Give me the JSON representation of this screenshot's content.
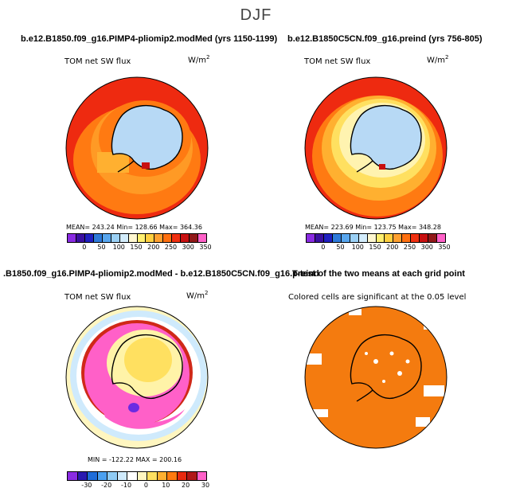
{
  "figure_title": "DJF",
  "colors": {
    "scale_abs": [
      "#8a2be2",
      "#3a0fa0",
      "#2020c0",
      "#2e7ad9",
      "#58a6ee",
      "#9bd0f5",
      "#d3ecfb",
      "#fff7d0",
      "#ffef70",
      "#ffcf40",
      "#ffa030",
      "#ff7010",
      "#f03010",
      "#c81010",
      "#901818",
      "#ff60c8"
    ],
    "scale_diff": [
      "#8a2be2",
      "#2a1ab0",
      "#1e6cd8",
      "#4ba0f0",
      "#8fcbf5",
      "#cfeafc",
      "#ffffff",
      "#fff6c0",
      "#ffe060",
      "#ffb030",
      "#ff7a10",
      "#e82a10",
      "#b01818",
      "#ff60c8"
    ],
    "land": "#b7d9f5",
    "significant": "#f47b0f"
  },
  "panels": [
    {
      "title": "b.e12.B1850.f09_g16.PIMP4-pliomip2.modMed (yrs 1150-1199)",
      "variable": "TOM net SW flux",
      "units": "W/m",
      "units_sup": "2",
      "stats": "MEAN= 243.24   Min= 128.66   Max= 364.36",
      "cbar_labels": [
        "0",
        "50",
        "100",
        "150",
        "200",
        "250",
        "300",
        "350"
      ]
    },
    {
      "title": "b.e12.B1850C5CN.f09_g16.preind (yrs 756-805)",
      "variable": "TOM net SW flux",
      "units": "W/m",
      "units_sup": "2",
      "stats": "MEAN= 223.69   Min= 123.75   Max= 348.28",
      "cbar_labels": [
        "0",
        "50",
        "100",
        "150",
        "200",
        "250",
        "300",
        "350"
      ]
    },
    {
      "title": ".B1850.f09_g16.PIMP4-pliomip2.modMed - b.e12.B1850C5CN.f09_g16.preind",
      "variable": "TOM net SW flux",
      "units": "W/m",
      "units_sup": "2",
      "stats": "MIN = -122.22  MAX = 200.16",
      "cbar_labels": [
        "-30",
        "-20",
        "-10",
        "0",
        "10",
        "20",
        "30"
      ]
    },
    {
      "title": "T-test of the two means at each grid point",
      "subtitle": "Colored cells are significant at the 0.05 level"
    }
  ],
  "chart_data": [
    {
      "type": "heatmap",
      "projection": "south polar stereographic",
      "title": "b.e12.B1850.f09_g16.PIMP4-pliomip2.modMed (yrs 1150-1199)",
      "variable": "TOM net SW flux",
      "units": "W/m2",
      "mean": 243.24,
      "min": 128.66,
      "max": 364.36,
      "colorbar_ticks": [
        0,
        50,
        100,
        150,
        200,
        250,
        300,
        350
      ]
    },
    {
      "type": "heatmap",
      "projection": "south polar stereographic",
      "title": "b.e12.B1850C5CN.f09_g16.preind (yrs 756-805)",
      "variable": "TOM net SW flux",
      "units": "W/m2",
      "mean": 223.69,
      "min": 123.75,
      "max": 348.28,
      "colorbar_ticks": [
        0,
        50,
        100,
        150,
        200,
        250,
        300,
        350
      ]
    },
    {
      "type": "heatmap",
      "projection": "south polar stereographic",
      "title": ".B1850.f09_g16.PIMP4-pliomip2.modMed - b.e12.B1850C5CN.f09_g16.preind",
      "variable": "TOM net SW flux",
      "units": "W/m2",
      "min": -122.22,
      "max": 200.16,
      "colorbar_ticks": [
        -30,
        -20,
        -10,
        0,
        10,
        20,
        30
      ]
    },
    {
      "type": "heatmap",
      "projection": "south polar stereographic",
      "title": "T-test of the two means at each grid point",
      "annotation": "Colored cells are significant at the 0.05 level",
      "significance_level": 0.05
    }
  ]
}
